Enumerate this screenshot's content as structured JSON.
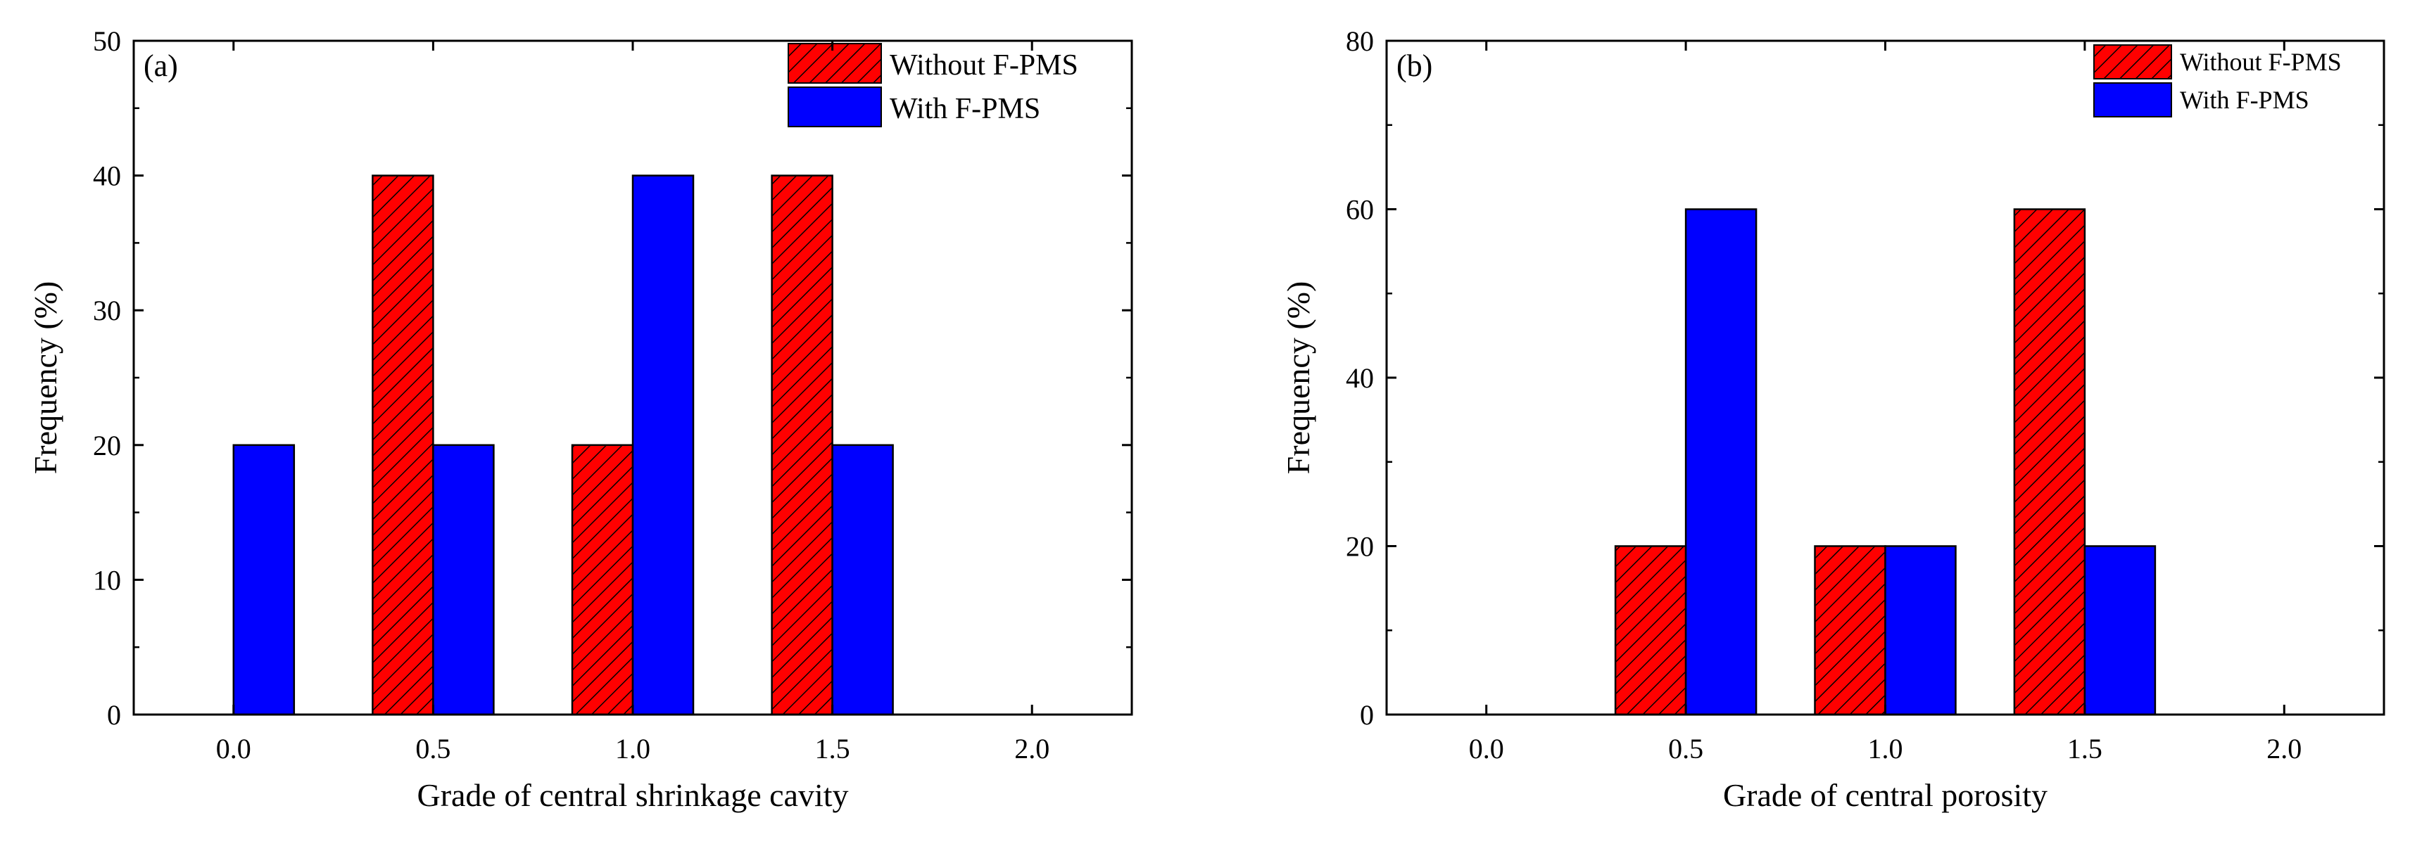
{
  "chart_data": [
    {
      "type": "bar",
      "panel_label": "(a)",
      "categories": [
        "0.0",
        "0.5",
        "1.0",
        "1.5",
        "2.0"
      ],
      "x": [
        0.0,
        0.5,
        1.0,
        1.5,
        2.0
      ],
      "series": [
        {
          "name": "Without F-PMS",
          "values": [
            0,
            40,
            20,
            40,
            0
          ],
          "color": "#ff0000",
          "pattern": "hatched"
        },
        {
          "name": "With F-PMS",
          "values": [
            20,
            20,
            40,
            20,
            0
          ],
          "color": "#0000ff",
          "pattern": "solid"
        }
      ],
      "xlabel": "Grade of central shrinkage cavity",
      "ylabel": "Frequency (%)",
      "xlim": [
        -0.25,
        2.25
      ],
      "ylim": [
        0,
        50
      ],
      "yticks": [
        0,
        10,
        20,
        30,
        40,
        50
      ],
      "legend_position": "top-right",
      "grid": false
    },
    {
      "type": "bar",
      "panel_label": "(b)",
      "categories": [
        "0.0",
        "0.5",
        "1.0",
        "1.5",
        "2.0"
      ],
      "x": [
        0.0,
        0.5,
        1.0,
        1.5,
        2.0
      ],
      "series": [
        {
          "name": "Without F-PMS",
          "values": [
            0,
            20,
            20,
            60,
            0
          ],
          "color": "#ff0000",
          "pattern": "hatched"
        },
        {
          "name": "With F-PMS",
          "values": [
            0,
            60,
            20,
            20,
            0
          ],
          "color": "#0000ff",
          "pattern": "solid"
        }
      ],
      "xlabel": "Grade of central porosity",
      "ylabel": "Frequency (%)",
      "xlim": [
        -0.25,
        2.25
      ],
      "ylim": [
        0,
        80
      ],
      "yticks": [
        0,
        20,
        40,
        60,
        80
      ],
      "legend_position": "top-right",
      "grid": false
    }
  ]
}
